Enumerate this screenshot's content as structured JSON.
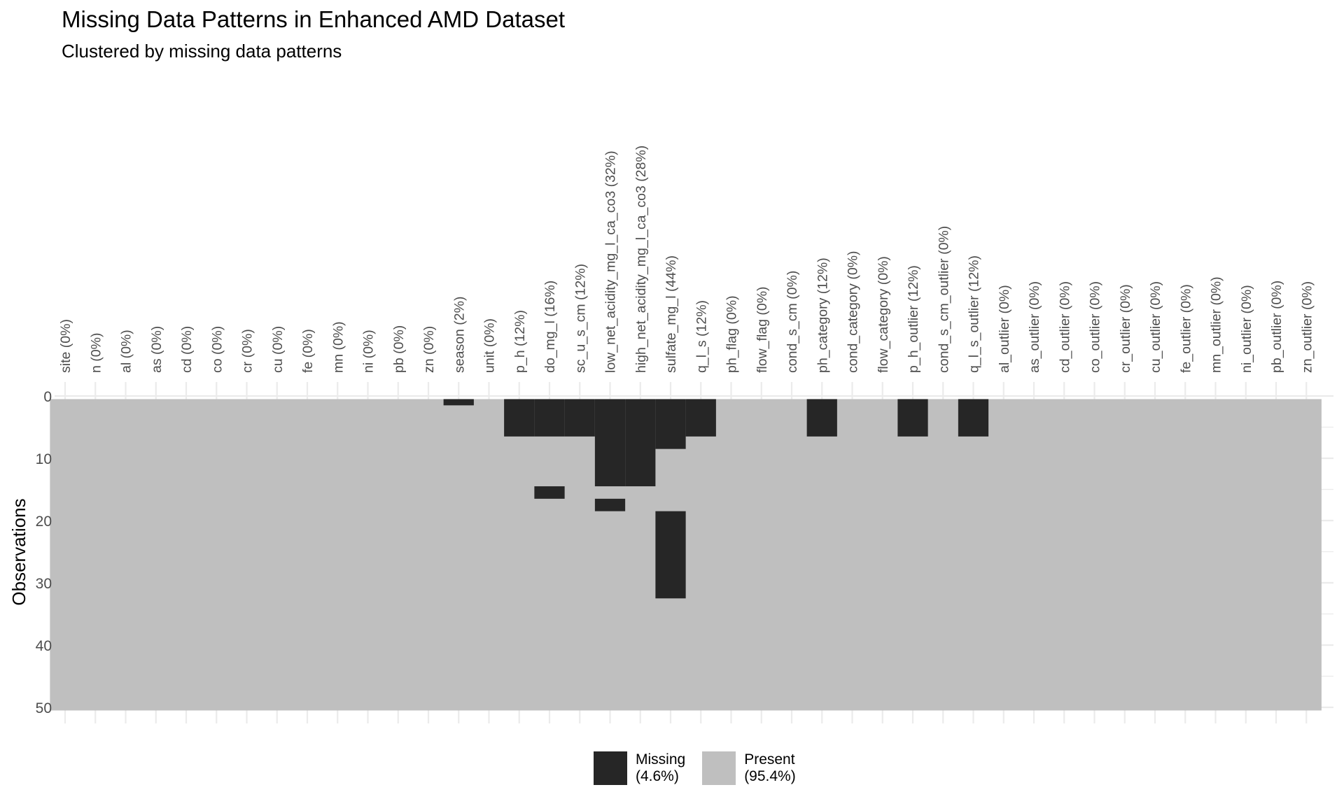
{
  "title": "Missing Data Patterns in Enhanced AMD Dataset",
  "subtitle": "Clustered by missing data patterns",
  "colors": {
    "missing": "#262626",
    "present": "#bfbfbf",
    "grid": "#ebebeb",
    "axis_text": "#4d4d4d"
  },
  "legend": [
    {
      "label": "Missing",
      "pct": "(4.6%)",
      "color": "#262626"
    },
    {
      "label": "Present",
      "pct": "(95.4%)",
      "color": "#bfbfbf"
    }
  ],
  "chart_data": {
    "type": "heatmap",
    "title": "Missing Data Patterns in Enhanced AMD Dataset",
    "subtitle": "Clustered by missing data patterns",
    "xlabel": "",
    "ylabel": "Observations",
    "n_rows": 50,
    "ylim": [
      0,
      50
    ],
    "y_ticks": [
      "0",
      "10",
      "20",
      "30",
      "40",
      "50"
    ],
    "x_labels_position": "top",
    "legend_position": "bottom",
    "columns": [
      "site (0%)",
      "n (0%)",
      "al (0%)",
      "as (0%)",
      "cd (0%)",
      "co (0%)",
      "cr (0%)",
      "cu (0%)",
      "fe (0%)",
      "mn (0%)",
      "ni (0%)",
      "pb (0%)",
      "zn (0%)",
      "season (2%)",
      "unit (0%)",
      "p_h (12%)",
      "do_mg_l (16%)",
      "sc_u_s_cm (12%)",
      "low_net_acidity_mg_l_ca_co3 (32%)",
      "high_net_acidity_mg_l_ca_co3 (28%)",
      "sulfate_mg_l (44%)",
      "q_l_s (12%)",
      "ph_flag (0%)",
      "flow_flag (0%)",
      "cond_s_cm (0%)",
      "ph_category (12%)",
      "cond_category (0%)",
      "flow_category (0%)",
      "p_h_outlier (12%)",
      "cond_s_cm_outlier (0%)",
      "q_l_s_outlier (12%)",
      "al_outlier (0%)",
      "as_outlier (0%)",
      "cd_outlier (0%)",
      "co_outlier (0%)",
      "cr_outlier (0%)",
      "cu_outlier (0%)",
      "fe_outlier (0%)",
      "mn_outlier (0%)",
      "ni_outlier (0%)",
      "pb_outlier (0%)",
      "zn_outlier (0%)"
    ],
    "missing_runs": [
      {
        "column": "season (2%)",
        "rows": [
          1,
          1
        ]
      },
      {
        "column": "p_h (12%)",
        "rows": [
          1,
          6
        ]
      },
      {
        "column": "do_mg_l (16%)",
        "rows": [
          1,
          6
        ]
      },
      {
        "column": "do_mg_l (16%)",
        "rows": [
          15,
          16
        ]
      },
      {
        "column": "sc_u_s_cm (12%)",
        "rows": [
          1,
          6
        ]
      },
      {
        "column": "low_net_acidity_mg_l_ca_co3 (32%)",
        "rows": [
          1,
          14
        ]
      },
      {
        "column": "low_net_acidity_mg_l_ca_co3 (32%)",
        "rows": [
          17,
          18
        ]
      },
      {
        "column": "high_net_acidity_mg_l_ca_co3 (28%)",
        "rows": [
          1,
          14
        ]
      },
      {
        "column": "sulfate_mg_l (44%)",
        "rows": [
          1,
          8
        ]
      },
      {
        "column": "sulfate_mg_l (44%)",
        "rows": [
          19,
          32
        ]
      },
      {
        "column": "q_l_s (12%)",
        "rows": [
          1,
          6
        ]
      },
      {
        "column": "ph_category (12%)",
        "rows": [
          1,
          6
        ]
      },
      {
        "column": "p_h_outlier (12%)",
        "rows": [
          1,
          6
        ]
      },
      {
        "column": "q_l_s_outlier (12%)",
        "rows": [
          1,
          6
        ]
      }
    ]
  }
}
